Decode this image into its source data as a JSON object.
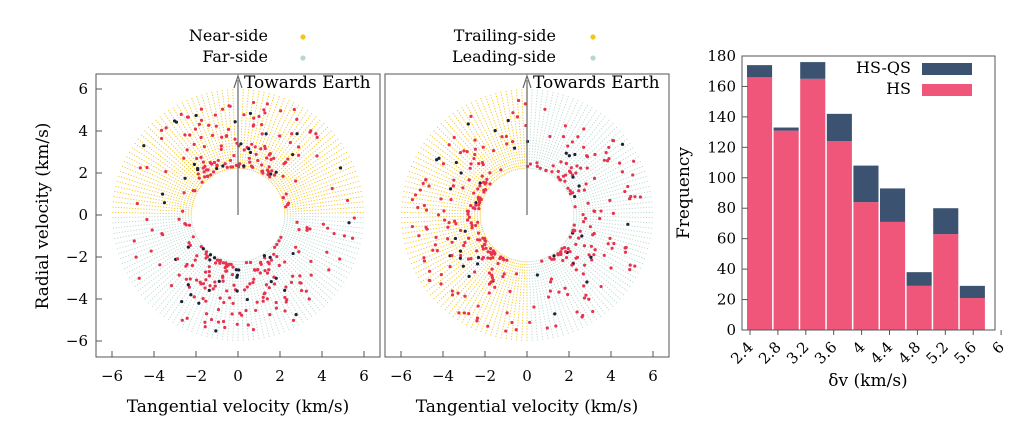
{
  "chart_data": [
    {
      "type": "scatter",
      "subtype": "polar-annulus",
      "legend": [
        {
          "label": "Near-side",
          "color": "#f5c518"
        },
        {
          "label": "Far-side",
          "color": "#b8d8cf"
        }
      ],
      "legend_placement": "top",
      "region_split": "near-side: radial velocity > 0 (upper half); far-side: radial velocity < 0 (lower half)",
      "xlabel": "Tangential velocity (km/s)",
      "ylabel": "Radial velocity (km/s)",
      "xlim": [
        -6.8,
        6.8
      ],
      "ylim": [
        -6.8,
        6.8
      ],
      "xticks": [
        "−6",
        "−4",
        "−2",
        "0",
        "2",
        "4",
        "6"
      ],
      "yticks": [
        "−6",
        "−4",
        "−2",
        "0",
        "2",
        "4",
        "6"
      ],
      "annulus_inner_radius": 2.2,
      "annulus_outer_radius": 6.0,
      "arrow_label": "Towards Earth",
      "point_colors": {
        "HS": "#e8334f",
        "HS-QS": "#1a2238"
      },
      "grid": false
    },
    {
      "type": "scatter",
      "subtype": "polar-annulus",
      "legend": [
        {
          "label": "Trailing-side",
          "color": "#f5c518"
        },
        {
          "label": "Leading-side",
          "color": "#b8d8cf"
        }
      ],
      "legend_placement": "top",
      "region_split": "trailing-side: tangential velocity < 0 (left half); leading-side: tangential velocity > 0 (right half)",
      "xlabel": "Tangential velocity (km/s)",
      "ylabel": "",
      "xlim": [
        -6.8,
        6.8
      ],
      "ylim": [
        -6.8,
        6.8
      ],
      "xticks": [
        "−6",
        "−4",
        "−2",
        "0",
        "2",
        "4",
        "6"
      ],
      "annulus_inner_radius": 2.2,
      "annulus_outer_radius": 6.0,
      "arrow_label": "Towards Earth",
      "point_colors": {
        "HS": "#e8334f",
        "HS-QS": "#1a2238"
      },
      "grid": false
    },
    {
      "type": "bar",
      "stacked": true,
      "bin_edges": [
        2.4,
        2.8,
        3.2,
        3.6,
        4.0,
        4.4,
        4.8,
        5.2,
        5.6,
        6.0
      ],
      "xtick_labels": [
        "2.4",
        "2.8",
        "3.2",
        "3.6",
        "4",
        "4.4",
        "4.8",
        "5.2",
        "5.6",
        "6"
      ],
      "series": [
        {
          "name": "HS",
          "color": "#f0567a",
          "values": [
            166,
            131,
            165,
            124,
            84,
            71,
            29,
            63,
            21
          ]
        },
        {
          "name": "HS-QS",
          "color": "#3b5270",
          "values": [
            8,
            2,
            11,
            18,
            24,
            22,
            9,
            17,
            8
          ]
        }
      ],
      "legend_order": [
        "HS-QS",
        "HS"
      ],
      "legend_placement": "top-right",
      "xlabel": "δv (km/s)",
      "ylabel": "Frequency",
      "ylim": [
        0,
        180
      ],
      "yticks": [
        "0",
        "20",
        "40",
        "60",
        "80",
        "100",
        "120",
        "140",
        "160",
        "180"
      ],
      "grid": false
    }
  ]
}
